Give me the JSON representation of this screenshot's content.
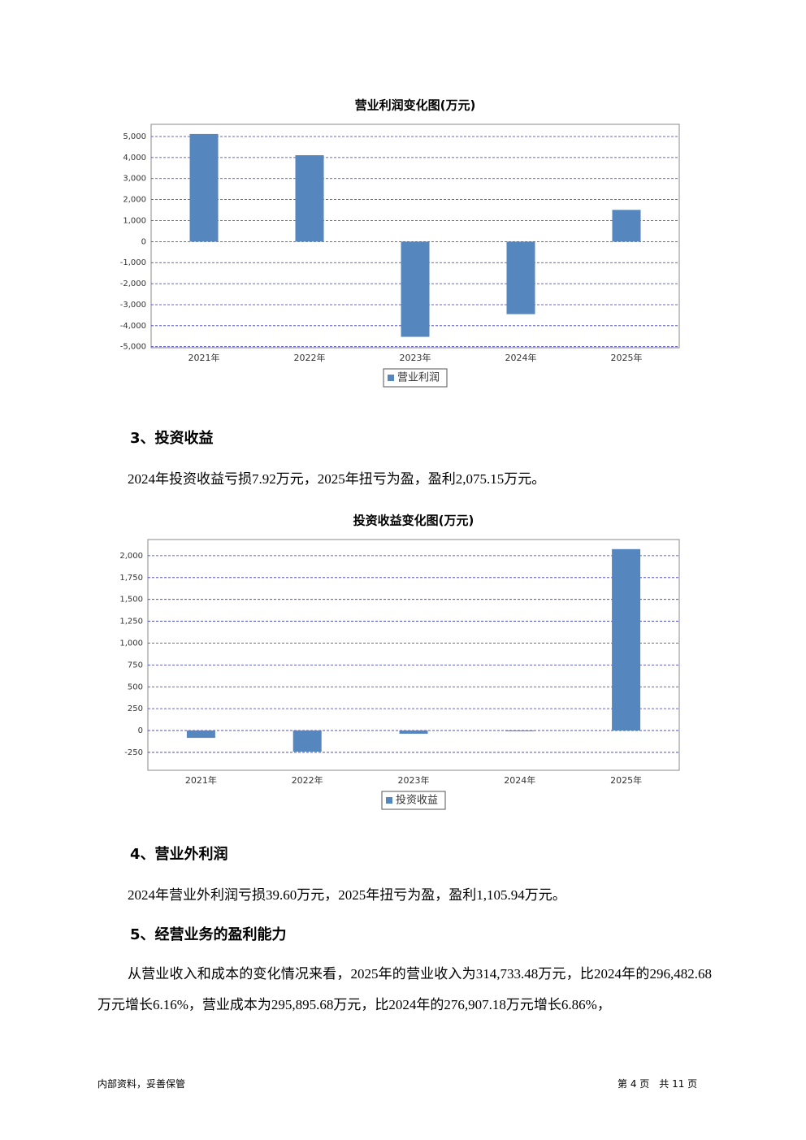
{
  "chart_data": [
    {
      "type": "bar",
      "title": "营业利润变化图(万元)",
      "categories": [
        "2021年",
        "2022年",
        "2023年",
        "2024年",
        "2025年"
      ],
      "series": [
        {
          "name": "营业利润",
          "color": "#5586bd",
          "values": [
            5120,
            4110,
            -4530,
            -3450,
            1510
          ]
        }
      ],
      "ylim": [
        -5050,
        5580
      ],
      "yticks": [
        {
          "value": -5000,
          "label": "-5,000"
        },
        {
          "value": -4000,
          "label": "-4,000"
        },
        {
          "value": -3000,
          "label": "-3,000"
        },
        {
          "value": -2000,
          "label": "-2,000"
        },
        {
          "value": -1000,
          "label": "-1,000"
        },
        0,
        {
          "value": 1000,
          "label": "1,000"
        },
        {
          "value": 2000,
          "label": "2,000"
        },
        {
          "value": 3000,
          "label": "3,000"
        },
        {
          "value": 4000,
          "label": "4,000"
        },
        {
          "value": 5000,
          "label": "5,000"
        }
      ],
      "grid": true,
      "legend": "bottom"
    },
    {
      "type": "bar",
      "title": "投资收益变化图(万元)",
      "categories": [
        "2021年",
        "2022年",
        "2023年",
        "2024年",
        "2025年"
      ],
      "series": [
        {
          "name": "投资收益",
          "color": "#5586bd",
          "values": [
            -84,
            -242,
            -37,
            -7.92,
            2075.15
          ]
        }
      ],
      "ylim": [
        -455,
        2185
      ],
      "yticks": [
        -250,
        0,
        250,
        500,
        750,
        {
          "value": 1000,
          "label": "1,000"
        },
        {
          "value": 1250,
          "label": "1,250"
        },
        {
          "value": 1500,
          "label": "1,500"
        },
        {
          "value": 1750,
          "label": "1,750"
        },
        {
          "value": 2000,
          "label": "2,000"
        }
      ],
      "grid": true,
      "legend": "bottom"
    }
  ],
  "sections": [
    {
      "heading": "3、投资收益",
      "text": "2024年投资收益亏损7.92万元，2025年扭亏为盈，盈利2,075.15万元。"
    },
    {
      "heading": "4、营业外利润",
      "text": "2024年营业外利润亏损39.60万元，2025年扭亏为盈，盈利1,105.94万元。"
    },
    {
      "heading": "5、经营业务的盈利能力",
      "text": "从营业收入和成本的变化情况来看，2025年的营业收入为314,733.48万元，比2024年的296,482.68万元增长6.16%，营业成本为295,895.68万元，比2024年的276,907.18万元增长6.86%，"
    }
  ],
  "footer": {
    "left": "内部资料，妥善保管",
    "right": "第 4 页　共 11 页"
  }
}
